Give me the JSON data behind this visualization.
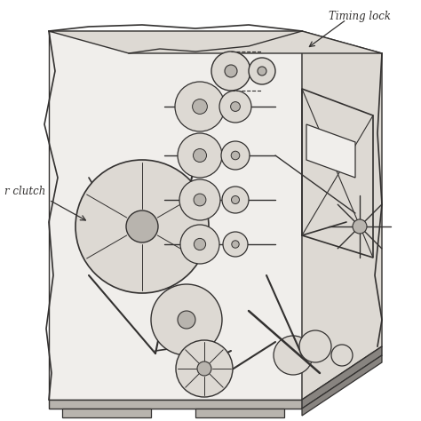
{
  "background_color": "#ffffff",
  "label_timing_lock": "Timing lock",
  "label_clutch": "r clutch",
  "fig_width": 4.74,
  "fig_height": 4.74,
  "dpi": 100,
  "colors": {
    "very_light": "#f0eeeb",
    "light_gray": "#ddd9d3",
    "mid_gray": "#b8b4ae",
    "dark_gray": "#888480",
    "line": "#555250",
    "line_dark": "#333130"
  }
}
